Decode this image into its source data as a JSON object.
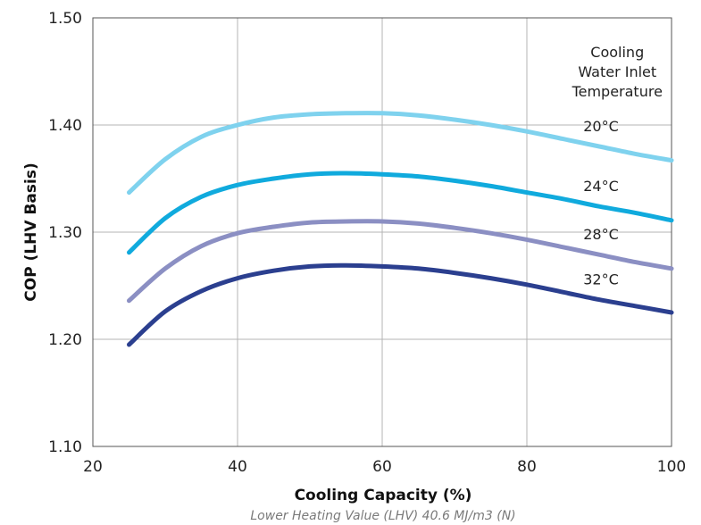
{
  "chart_data": {
    "type": "line",
    "title": "",
    "xlabel": "Cooling Capacity (%)",
    "ylabel": "COP (LHV Basis)",
    "note": "Lower Heating Value (LHV) 40.6 MJ/m3 (N)",
    "legend_title": [
      "Cooling",
      "Water Inlet",
      "Temperature"
    ],
    "legend_placement": "top-right",
    "grid": true,
    "xlim": [
      20,
      100
    ],
    "ylim": [
      1.1,
      1.5
    ],
    "x_ticks": [
      {
        "value": 20,
        "label": "20"
      },
      {
        "value": 40,
        "label": "40"
      },
      {
        "value": 60,
        "label": "60"
      },
      {
        "value": 80,
        "label": "80"
      },
      {
        "value": 100,
        "label": "100"
      }
    ],
    "y_ticks": [
      {
        "value": 1.1,
        "label": "1.10"
      },
      {
        "value": 1.2,
        "label": "1.20"
      },
      {
        "value": 1.3,
        "label": "1.30"
      },
      {
        "value": 1.4,
        "label": "1.40"
      },
      {
        "value": 1.5,
        "label": "1.50"
      }
    ],
    "x": [
      25,
      30,
      35,
      40,
      45,
      50,
      55,
      60,
      65,
      70,
      75,
      80,
      85,
      90,
      95,
      100
    ],
    "series": [
      {
        "name": "20°C",
        "color": "#7fd2ee",
        "values": [
          1.337,
          1.368,
          1.389,
          1.4,
          1.407,
          1.41,
          1.411,
          1.411,
          1.409,
          1.405,
          1.4,
          1.394,
          1.387,
          1.38,
          1.373,
          1.367
        ]
      },
      {
        "name": "24°C",
        "color": "#10aadd",
        "values": [
          1.281,
          1.313,
          1.333,
          1.344,
          1.35,
          1.354,
          1.355,
          1.354,
          1.352,
          1.348,
          1.343,
          1.337,
          1.331,
          1.324,
          1.318,
          1.311
        ]
      },
      {
        "name": "28°C",
        "color": "#8b8fc3",
        "values": [
          1.236,
          1.266,
          1.287,
          1.299,
          1.305,
          1.309,
          1.31,
          1.31,
          1.308,
          1.304,
          1.299,
          1.293,
          1.286,
          1.279,
          1.272,
          1.266
        ]
      },
      {
        "name": "32°C",
        "color": "#2b3f8f",
        "values": [
          1.195,
          1.226,
          1.245,
          1.257,
          1.264,
          1.268,
          1.269,
          1.268,
          1.266,
          1.262,
          1.257,
          1.251,
          1.244,
          1.237,
          1.231,
          1.225
        ]
      }
    ]
  }
}
